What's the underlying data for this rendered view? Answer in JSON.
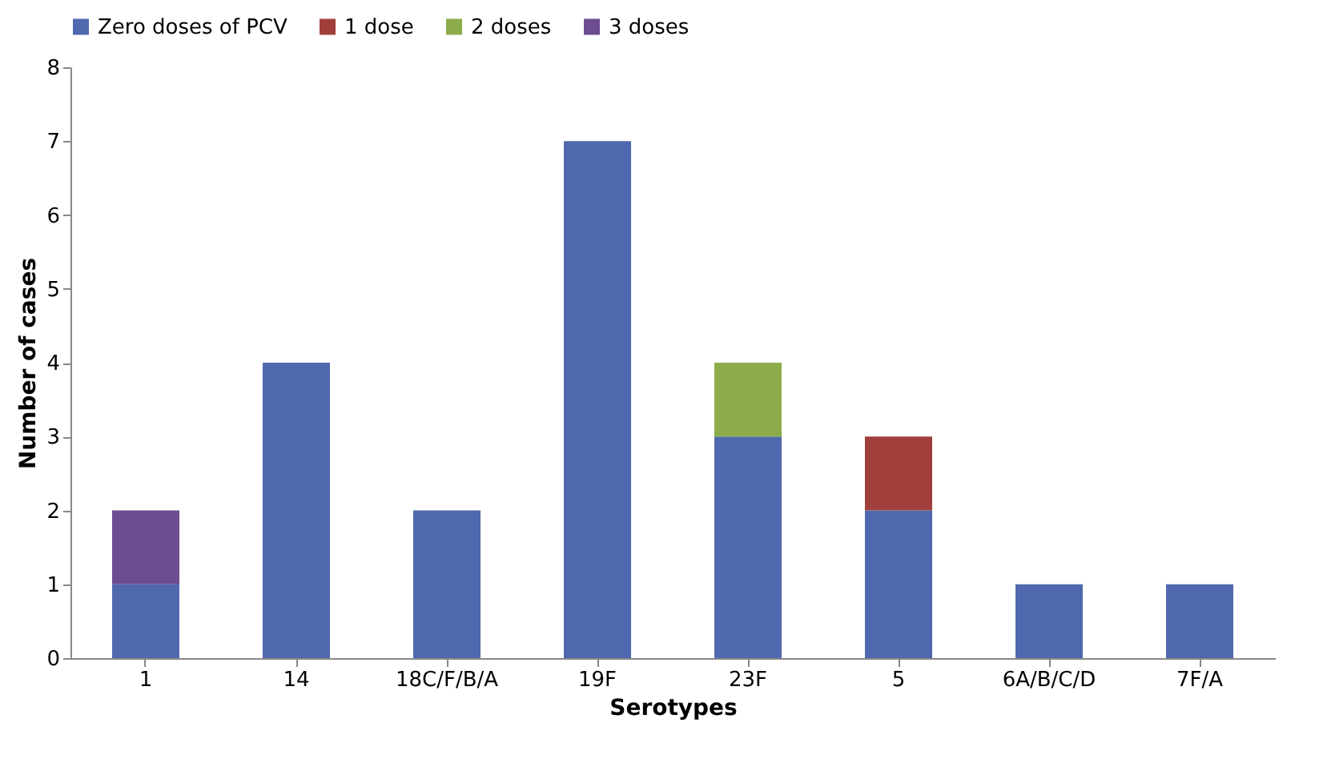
{
  "chart_data": {
    "type": "bar",
    "stacked": true,
    "xlabel": "Serotypes",
    "ylabel": "Number of cases",
    "categories": [
      "1",
      "14",
      "18C/F/B/A",
      "19F",
      "23F",
      "5",
      "6A/B/C/D",
      "7F/A"
    ],
    "series": [
      {
        "name": "Zero doses of PCV",
        "color": "#5068ad",
        "values": [
          1,
          4,
          2,
          7,
          3,
          2,
          1,
          1
        ]
      },
      {
        "name": "1 dose",
        "color": "#a03f3c",
        "values": [
          null,
          null,
          null,
          null,
          null,
          1,
          null,
          null
        ]
      },
      {
        "name": "2 doses",
        "color": "#8cac4c",
        "values": [
          null,
          null,
          null,
          null,
          1,
          null,
          null,
          null
        ]
      },
      {
        "name": "3 doses",
        "color": "#6b4d90",
        "values": [
          1,
          null,
          null,
          null,
          null,
          null,
          null,
          null
        ]
      }
    ],
    "ylim": [
      0,
      8
    ],
    "yticks": [
      0,
      1,
      2,
      3,
      4,
      5,
      6,
      7,
      8
    ],
    "grid": false,
    "legend": "top"
  }
}
